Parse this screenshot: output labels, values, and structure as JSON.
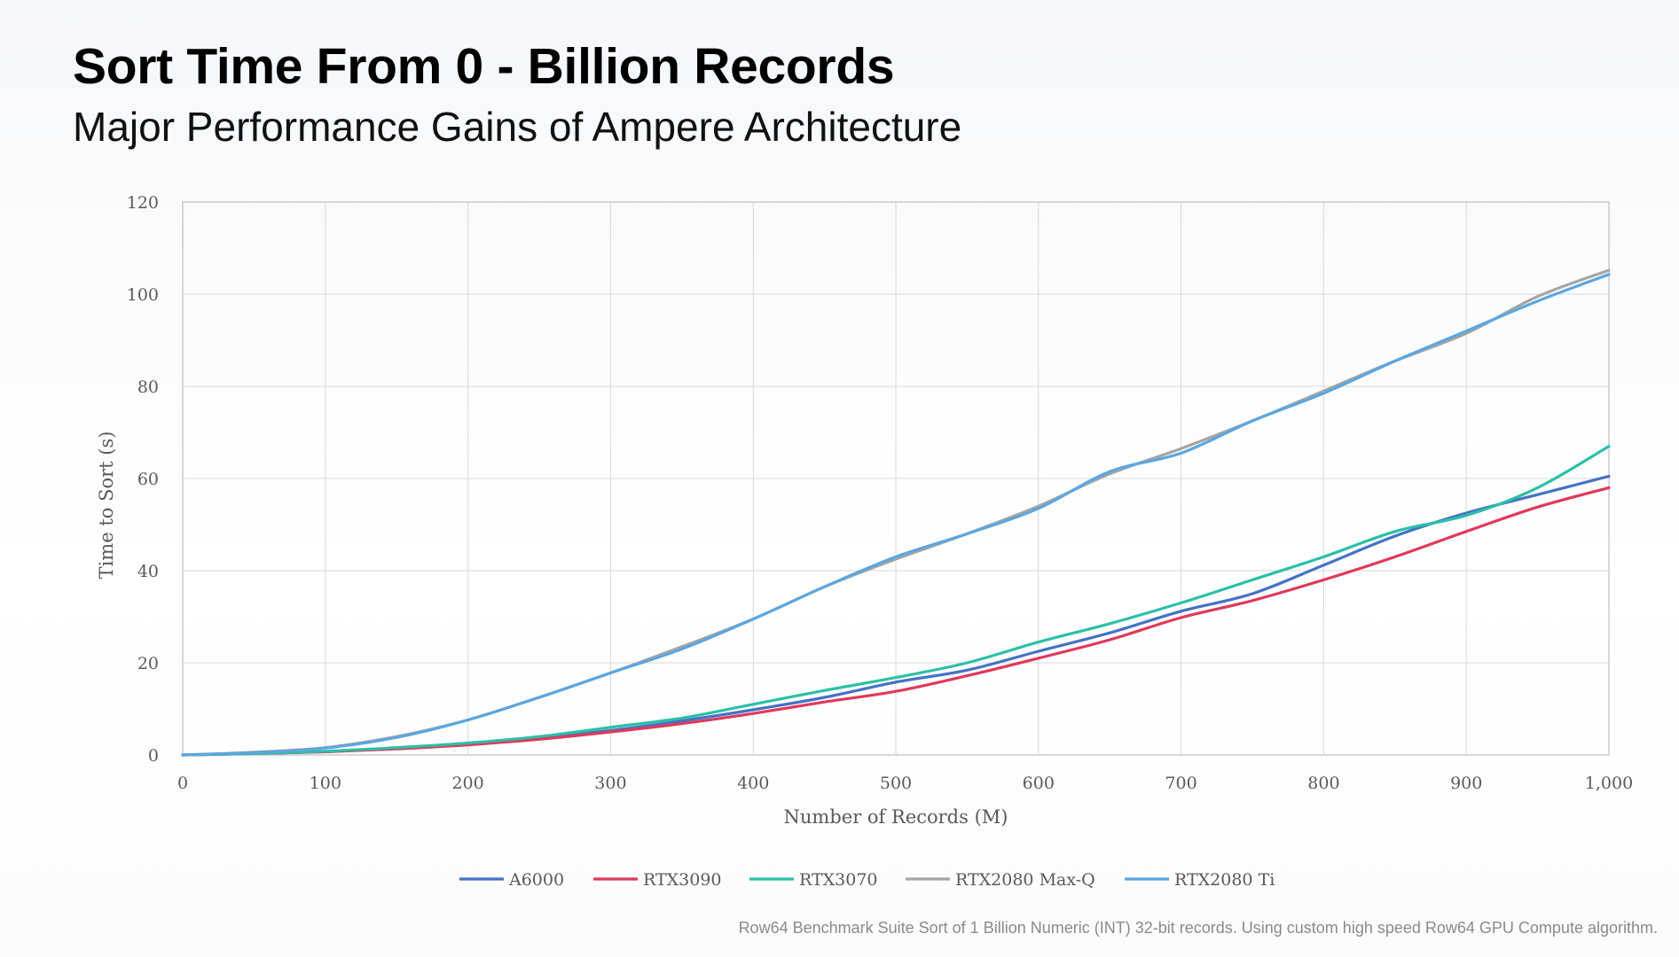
{
  "slide": {
    "title": "Sort Time From 0 - Billion Records",
    "subtitle": "Major Performance Gains of Ampere Architecture",
    "footnote": "Row64 Benchmark Suite Sort of 1 Billion Numeric (INT) 32-bit records.  Using custom high speed Row64 GPU Compute algorithm."
  },
  "chart_data": {
    "type": "line",
    "title": "",
    "xlabel": "Number of Records (M)",
    "ylabel": "Time to Sort (s)",
    "xlim": [
      0,
      1000
    ],
    "ylim": [
      0,
      120
    ],
    "x_ticks": [
      0,
      100,
      200,
      300,
      400,
      500,
      600,
      700,
      800,
      900,
      1000
    ],
    "x_tick_labels": [
      "0",
      "100",
      "200",
      "300",
      "400",
      "500",
      "600",
      "700",
      "800",
      "900",
      "1,000"
    ],
    "y_ticks": [
      0,
      20,
      40,
      60,
      80,
      100,
      120
    ],
    "y_tick_labels": [
      "0",
      "20",
      "40",
      "60",
      "80",
      "100",
      "120"
    ],
    "grid": true,
    "legend_position": "bottom",
    "x": [
      0,
      50,
      100,
      150,
      200,
      250,
      300,
      350,
      400,
      450,
      500,
      550,
      600,
      650,
      700,
      750,
      800,
      850,
      900,
      950,
      1000
    ],
    "series": [
      {
        "name": "A6000",
        "color": "#4472c4",
        "values": [
          0,
          0.3,
          0.7,
          1.4,
          2.4,
          3.7,
          5.3,
          7.4,
          9.8,
          12.5,
          15.8,
          18.4,
          22.5,
          26.5,
          31.2,
          35,
          41.2,
          47.5,
          52.5,
          56.5,
          60.5
        ]
      },
      {
        "name": "RTX3090",
        "color": "#e0395a",
        "values": [
          0,
          0.3,
          0.7,
          1.3,
          2.2,
          3.4,
          5,
          6.8,
          9,
          11.5,
          13.8,
          17.2,
          21,
          25,
          29.8,
          33.5,
          38,
          43,
          48.5,
          53.8,
          58
        ]
      },
      {
        "name": "RTX3070",
        "color": "#2cbfa8",
        "values": [
          0,
          0.3,
          0.8,
          1.6,
          2.6,
          4,
          6,
          8,
          11,
          14,
          16.8,
          20,
          24.5,
          28.5,
          33,
          38,
          43,
          48.5,
          52,
          58,
          67
        ]
      },
      {
        "name": "RTX2080 Max-Q",
        "color": "#a5a5a5",
        "values": [
          0,
          0.6,
          1.6,
          4,
          7.6,
          12.5,
          17.8,
          23.5,
          29.5,
          36.5,
          42.5,
          48,
          54,
          61,
          66.5,
          72.5,
          79,
          85.5,
          91.5,
          99.5,
          105.2
        ]
      },
      {
        "name": "RTX2080 Ti",
        "color": "#5ba6e0",
        "values": [
          0,
          0.5,
          1.5,
          3.8,
          7.6,
          12.5,
          17.8,
          23,
          29.5,
          36.5,
          43,
          48,
          53.5,
          61.5,
          65.5,
          72.5,
          78.5,
          85.5,
          92,
          98.5,
          104.3
        ]
      }
    ]
  }
}
